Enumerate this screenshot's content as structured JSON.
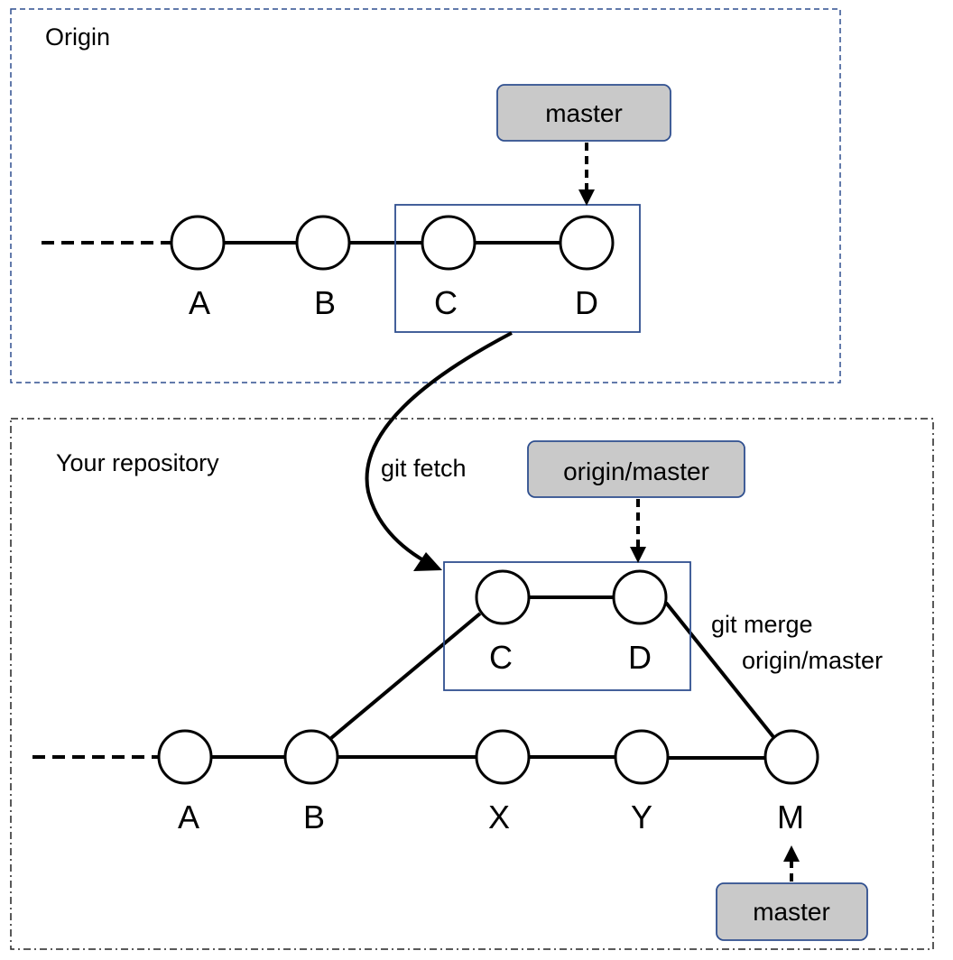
{
  "origin": {
    "title": "Origin",
    "commits": [
      "A",
      "B",
      "C",
      "D"
    ],
    "branch_label": "master"
  },
  "local": {
    "title": "Your repository",
    "main_commits": [
      "A",
      "B",
      "X",
      "Y",
      "M"
    ],
    "fetched_commits": [
      "C",
      "D"
    ],
    "remote_branch_label": "origin/master",
    "branch_label": "master"
  },
  "operations": {
    "fetch": "git fetch",
    "merge_line1": "git merge",
    "merge_line2": "origin/master"
  },
  "colors": {
    "ref_fill": "#c9c9c9",
    "box_stroke": "#2f4f8f",
    "line": "#000000"
  }
}
